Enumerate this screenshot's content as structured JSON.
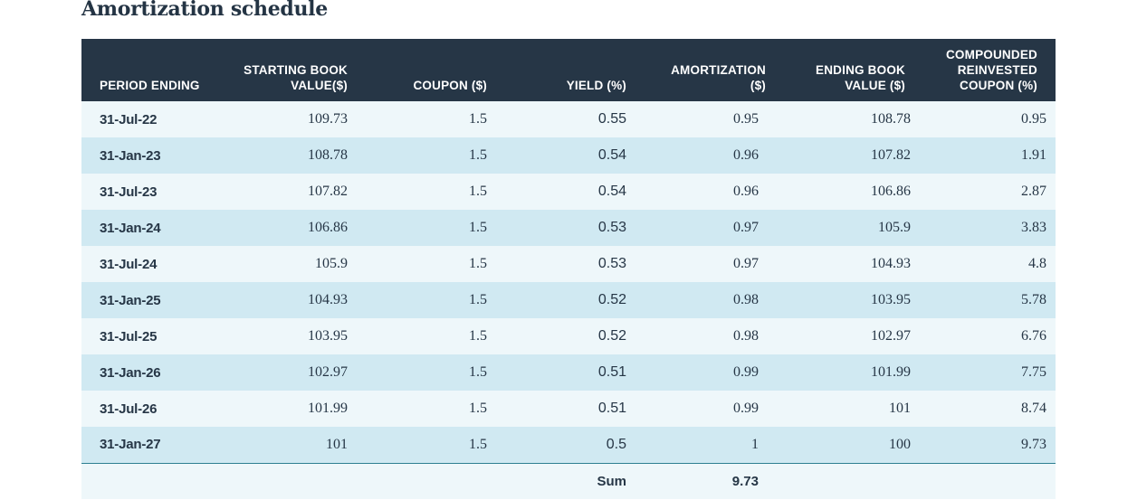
{
  "page": {
    "title": "Amortization schedule"
  },
  "table": {
    "headers": [
      "PERIOD ENDING",
      "STARTING BOOK\nVALUE($)",
      "COUPON ($)",
      "YIELD (%)",
      "AMORTIZATION\n($)",
      "ENDING BOOK\nVALUE ($)",
      "COMPOUNDED\nREINVESTED\nCOUPON (%)"
    ],
    "rows": [
      {
        "period": "31-Jul-22",
        "start": "109.73",
        "coupon": "1.5",
        "yield": "0.55",
        "amort": "0.95",
        "end": "108.78",
        "compounded": "0.95"
      },
      {
        "period": "31-Jan-23",
        "start": "108.78",
        "coupon": "1.5",
        "yield": "0.54",
        "amort": "0.96",
        "end": "107.82",
        "compounded": "1.91"
      },
      {
        "period": "31-Jul-23",
        "start": "107.82",
        "coupon": "1.5",
        "yield": "0.54",
        "amort": "0.96",
        "end": "106.86",
        "compounded": "2.87"
      },
      {
        "period": "31-Jan-24",
        "start": "106.86",
        "coupon": "1.5",
        "yield": "0.53",
        "amort": "0.97",
        "end": "105.9",
        "compounded": "3.83"
      },
      {
        "period": "31-Jul-24",
        "start": "105.9",
        "coupon": "1.5",
        "yield": "0.53",
        "amort": "0.97",
        "end": "104.93",
        "compounded": "4.8"
      },
      {
        "period": "31-Jan-25",
        "start": "104.93",
        "coupon": "1.5",
        "yield": "0.52",
        "amort": "0.98",
        "end": "103.95",
        "compounded": "5.78"
      },
      {
        "period": "31-Jul-25",
        "start": "103.95",
        "coupon": "1.5",
        "yield": "0.52",
        "amort": "0.98",
        "end": "102.97",
        "compounded": "6.76"
      },
      {
        "period": "31-Jan-26",
        "start": "102.97",
        "coupon": "1.5",
        "yield": "0.51",
        "amort": "0.99",
        "end": "101.99",
        "compounded": "7.75"
      },
      {
        "period": "31-Jul-26",
        "start": "101.99",
        "coupon": "1.5",
        "yield": "0.51",
        "amort": "0.99",
        "end": "101",
        "compounded": "8.74"
      },
      {
        "period": "31-Jan-27",
        "start": "101",
        "coupon": "1.5",
        "yield": "0.5",
        "amort": "1",
        "end": "100",
        "compounded": "9.73"
      }
    ],
    "sum": {
      "label": "Sum",
      "value": "9.73"
    }
  },
  "colors": {
    "header_bg": "#263646",
    "row_light": "#eef7fa",
    "row_dark": "#d0e9f2",
    "text": "#263646",
    "rule": "#2d7f91"
  }
}
